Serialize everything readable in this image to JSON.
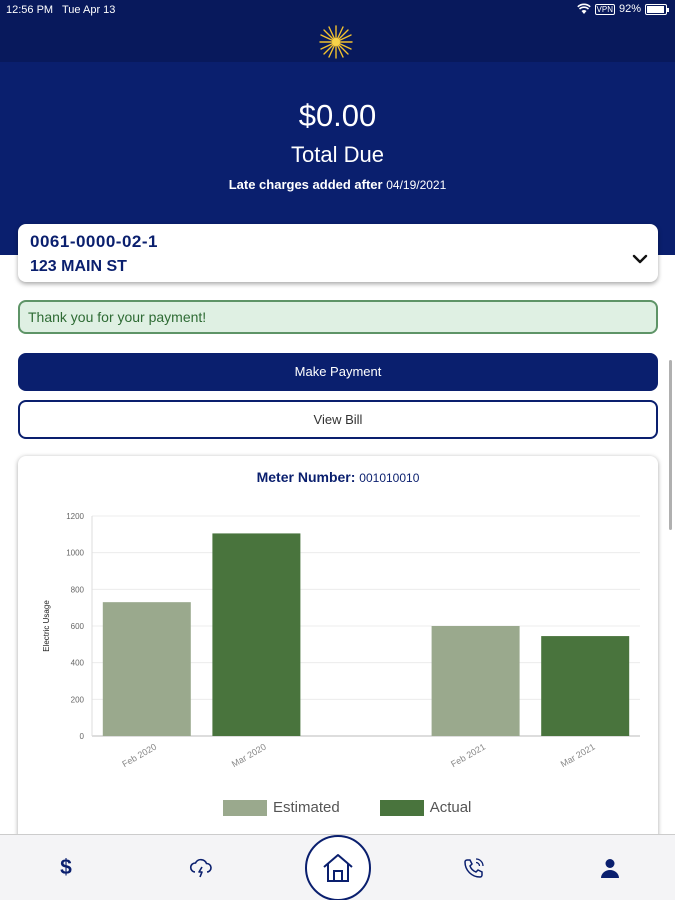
{
  "status_bar": {
    "time": "12:56 PM",
    "date": "Tue Apr 13",
    "battery": "92%",
    "vpn": "VPN"
  },
  "billing": {
    "amount": "$0.00",
    "label": "Total Due",
    "late_prefix": "Late charges added after",
    "late_date": "04/19/2021"
  },
  "account": {
    "number": "0061-0000-02-1",
    "address": "123 MAIN ST"
  },
  "alert": {
    "message": "Thank you for your payment!"
  },
  "buttons": {
    "make_payment": "Make Payment",
    "view_bill": "View Bill"
  },
  "meter": {
    "label": "Meter Number:",
    "number": "001010010"
  },
  "chart_data": {
    "type": "bar",
    "ylabel": "Electric Usage",
    "ylim": [
      0,
      1200
    ],
    "yticks": [
      0,
      200,
      400,
      600,
      800,
      1000,
      1200
    ],
    "categories": [
      "Feb 2020",
      "Mar 2020",
      "Feb 2021",
      "Mar 2021"
    ],
    "values": [
      730,
      1105,
      600,
      545
    ],
    "series_type": [
      "Estimated",
      "Actual",
      "Estimated",
      "Actual"
    ],
    "legend": [
      {
        "name": "Estimated",
        "color": "#9aa98d"
      },
      {
        "name": "Actual",
        "color": "#49743d"
      }
    ],
    "legend_position": "bottom",
    "grid": true
  },
  "tabs": [
    {
      "name": "tab-billing",
      "icon": "dollar-icon",
      "label": "$"
    },
    {
      "name": "tab-outages",
      "icon": "cloud-lightning-icon"
    },
    {
      "name": "tab-home",
      "icon": "home-icon"
    },
    {
      "name": "tab-contact",
      "icon": "phone-icon"
    },
    {
      "name": "tab-profile",
      "icon": "user-icon"
    }
  ],
  "colors": {
    "brand": "#0a1f6e",
    "success_bg": "#dff0e3",
    "success_border": "#5e9467"
  }
}
